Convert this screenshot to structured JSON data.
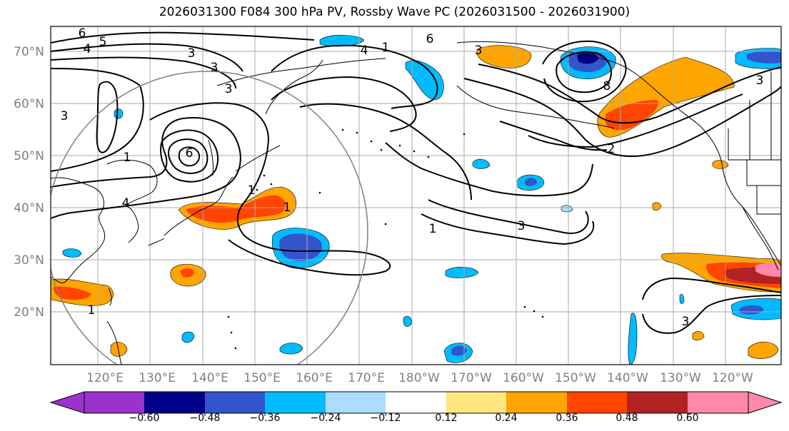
{
  "title": "2026031300 F084 300 hPa PV, Rossby Wave PC (2026031500 - 2026031900)",
  "lat_labels": [
    "70°N",
    "60°N",
    "50°N",
    "40°N",
    "30°N",
    "20°N"
  ],
  "lat_values": [
    70,
    60,
    50,
    40,
    30,
    20
  ],
  "lon_labels": [
    "120°E",
    "130°E",
    "140°E",
    "150°E",
    "160°E",
    "170°E",
    "180°W",
    "170°W",
    "160°W",
    "150°W",
    "140°W",
    "130°W",
    "120°W"
  ],
  "colorbar": {
    "tick_labels": [
      "−0.60",
      "−0.48",
      "−0.36",
      "−0.24",
      "−0.12",
      "0.12",
      "0.24",
      "0.36",
      "0.48",
      "0.60"
    ],
    "colors": [
      "#9a33cc",
      "#000088",
      "#3355cc",
      "#00bbff",
      "#aaddff",
      "#ffffff",
      "#ffe680",
      "#ffa500",
      "#ff4500",
      "#b22222",
      "#ff88aa"
    ]
  },
  "contour_labels": [
    "6",
    "5",
    "4",
    "3",
    "3",
    "3",
    "1",
    "4",
    "3",
    "6",
    "8",
    "3",
    "1",
    "6",
    "4",
    "3",
    "2",
    "3",
    "1",
    "3",
    "1",
    "1",
    "1"
  ],
  "colors": {
    "land": "#000000",
    "grid": "#aaaaaa",
    "contour": "#000000"
  }
}
